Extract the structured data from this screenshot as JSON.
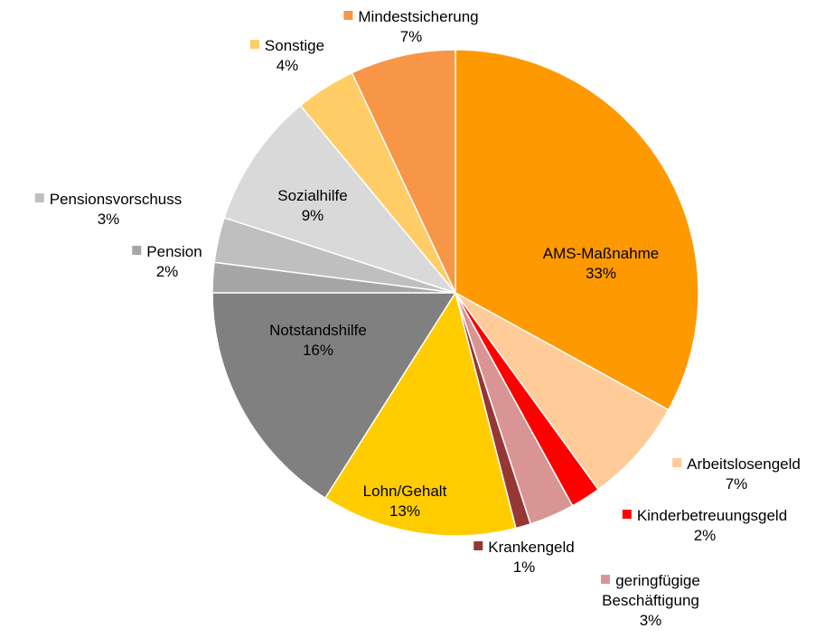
{
  "chart_data": {
    "type": "pie",
    "categories": [
      "AMS-Maßnahme",
      "Arbeitslosengeld",
      "Kinderbetreuungsgeld",
      "geringfügige Beschäftigung",
      "Krankengeld",
      "Lohn/Gehalt",
      "Notstandshilfe",
      "Pension",
      "Pensionsvorschuss",
      "Sozialhilfe",
      "Sonstige",
      "Mindestsicherung"
    ],
    "values": [
      33,
      7,
      2,
      3,
      1,
      13,
      16,
      2,
      3,
      9,
      4,
      7
    ],
    "value_labels": [
      "33%",
      "7%",
      "2%",
      "3%",
      "1%",
      "13%",
      "16%",
      "2%",
      "3%",
      "9%",
      "4%",
      "7%"
    ],
    "colors": [
      "#ff9900",
      "#ffcc99",
      "#ff0000",
      "#d99594",
      "#953735",
      "#ffcc00",
      "#808080",
      "#a6a6a6",
      "#bfbfbf",
      "#d9d9d9",
      "#ffcc66",
      "#f79646"
    ]
  }
}
